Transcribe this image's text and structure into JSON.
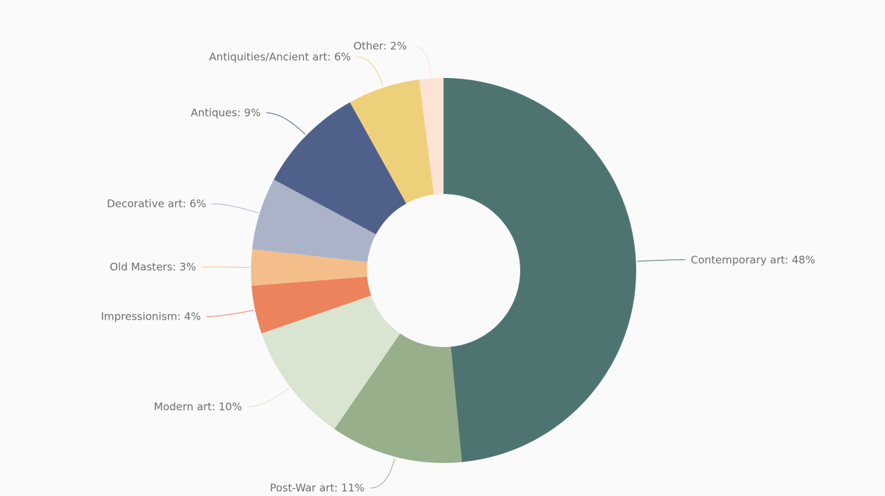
{
  "chart_data": {
    "type": "pie",
    "variant": "donut",
    "title": "",
    "start_angle_deg": 0,
    "direction": "clockwise",
    "slices": [
      {
        "name": "Contemporary art",
        "value": 48,
        "label": "Contemporary art: 48%",
        "color": "#4e7471"
      },
      {
        "name": "Post-War art",
        "value": 11,
        "label": "Post-War art: 11%",
        "color": "#97af8b"
      },
      {
        "name": "Modern art",
        "value": 10,
        "label": "Modern art: 10%",
        "color": "#d9e4d1"
      },
      {
        "name": "Impressionism",
        "value": 4,
        "label": "Impressionism: 4%",
        "color": "#ec835d"
      },
      {
        "name": "Old Masters",
        "value": 3,
        "label": "Old Masters: 3%",
        "color": "#f4be8b"
      },
      {
        "name": "Decorative art",
        "value": 6,
        "label": "Decorative art: 6%",
        "color": "#abb3c9"
      },
      {
        "name": "Antiques",
        "value": 9,
        "label": "Antiques: 9%",
        "color": "#4f608b"
      },
      {
        "name": "Antiquities/Ancient art",
        "value": 6,
        "label": "Antiquities/Ancient art: 6%",
        "color": "#efd07a"
      },
      {
        "name": "Other",
        "value": 2,
        "label": "Other: 2%",
        "color": "#fce3d6"
      }
    ],
    "legend": "none"
  }
}
